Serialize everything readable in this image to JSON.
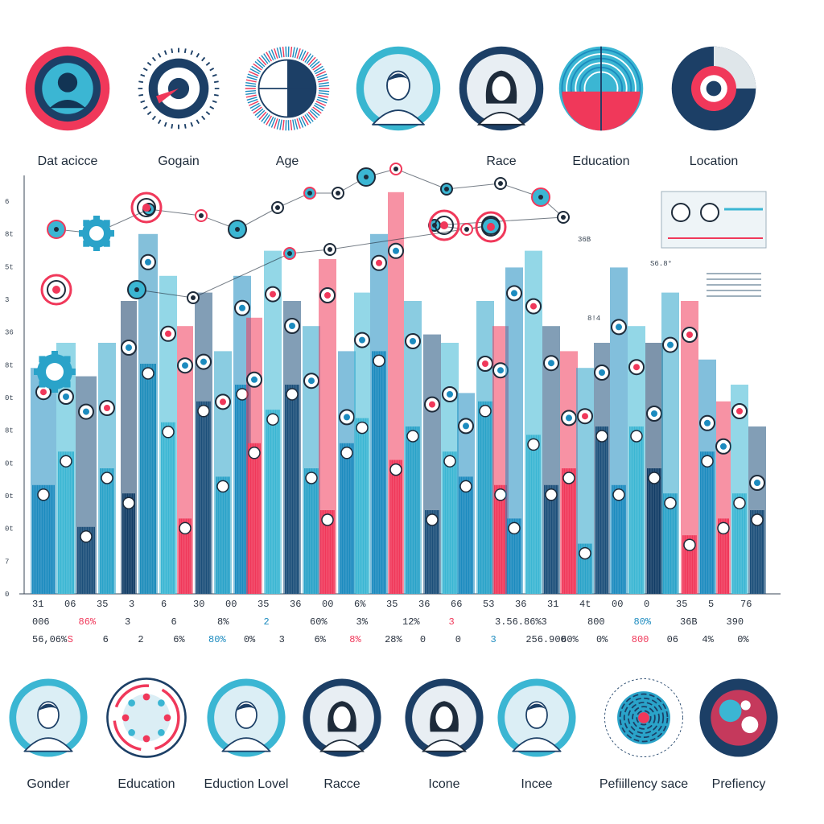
{
  "top_badges": [
    {
      "label": "Dat acicce",
      "icon": "person-icon",
      "accent": "#f0385a"
    },
    {
      "label": "Gogain",
      "icon": "target-icon",
      "accent": "#f0385a"
    },
    {
      "label": "Age",
      "icon": "radial-pie-icon",
      "accent": "#1c8bbf"
    },
    {
      "label": "",
      "icon": "man-portrait-icon",
      "accent": "#38b6d0"
    },
    {
      "label": "Race",
      "icon": "woman-portrait-icon",
      "accent": "#1c3f66"
    },
    {
      "label": "Education",
      "icon": "striped-ring-icon",
      "accent": "#f0385a"
    },
    {
      "label": "Location",
      "icon": "concentric-ring-icon",
      "accent": "#f0385a"
    }
  ],
  "bottom_badges": [
    {
      "label": "Gonder",
      "icon": "man-portrait-icon"
    },
    {
      "label": "Education",
      "icon": "network-ring-icon"
    },
    {
      "label": "Eduction Lovel",
      "icon": "man-portrait-icon"
    },
    {
      "label": "Racce",
      "icon": "woman-portrait-icon"
    },
    {
      "label": "Icone",
      "icon": "woman-portrait-icon"
    },
    {
      "label": "Incee",
      "icon": "man-portrait-icon"
    },
    {
      "label": "Pefiillency sace",
      "icon": "maze-globe-icon"
    },
    {
      "label": "Prefiency",
      "icon": "nodes-globe-icon"
    }
  ],
  "chart_data": {
    "type": "bar",
    "y_ticks": [
      "6",
      "8t",
      "5t",
      "3",
      "36",
      "8t",
      "0t",
      "8t",
      "0t",
      "0t",
      "0t",
      "7",
      "0"
    ],
    "top_right_labels": [
      "S6.8°",
      "36B",
      "8!4"
    ],
    "bars": [
      {
        "x": 38,
        "w": 32,
        "back": 0.54,
        "front": 0.26,
        "color": "#1c8bbf"
      },
      {
        "x": 70,
        "w": 24,
        "back": 0.6,
        "front": 0.34,
        "color": "#3bb6d3"
      },
      {
        "x": 94,
        "w": 26,
        "back": 0.52,
        "front": 0.16,
        "color": "#1c4f7a"
      },
      {
        "x": 122,
        "w": 22,
        "back": 0.6,
        "front": 0.3,
        "color": "#2aa3c9"
      },
      {
        "x": 150,
        "w": 20,
        "back": 0.7,
        "front": 0.24,
        "color": "#123d66"
      },
      {
        "x": 172,
        "w": 24,
        "back": 0.86,
        "front": 0.55,
        "color": "#1f8dbb"
      },
      {
        "x": 198,
        "w": 22,
        "back": 0.76,
        "front": 0.41,
        "color": "#3bb6d3"
      },
      {
        "x": 220,
        "w": 20,
        "back": 0.64,
        "front": 0.18,
        "color": "#f0385a"
      },
      {
        "x": 242,
        "w": 22,
        "back": 0.72,
        "front": 0.46,
        "color": "#1c4f7a"
      },
      {
        "x": 266,
        "w": 22,
        "back": 0.58,
        "front": 0.28,
        "color": "#2aa3c9"
      },
      {
        "x": 290,
        "w": 22,
        "back": 0.76,
        "front": 0.5,
        "color": "#1c8bbf"
      },
      {
        "x": 306,
        "w": 20,
        "back": 0.66,
        "front": 0.36,
        "color": "#f0385a"
      },
      {
        "x": 328,
        "w": 22,
        "back": 0.82,
        "front": 0.44,
        "color": "#3bb6d3"
      },
      {
        "x": 352,
        "w": 22,
        "back": 0.7,
        "front": 0.5,
        "color": "#1c4f7a"
      },
      {
        "x": 376,
        "w": 22,
        "back": 0.64,
        "front": 0.3,
        "color": "#2aa3c9"
      },
      {
        "x": 396,
        "w": 22,
        "back": 0.8,
        "front": 0.2,
        "color": "#f0385a"
      },
      {
        "x": 420,
        "w": 22,
        "back": 0.58,
        "front": 0.36,
        "color": "#1c8bbf"
      },
      {
        "x": 440,
        "w": 20,
        "back": 0.72,
        "front": 0.42,
        "color": "#3bb6d3"
      },
      {
        "x": 460,
        "w": 22,
        "back": 0.86,
        "front": 0.58,
        "color": "#1c8bbf"
      },
      {
        "x": 482,
        "w": 20,
        "back": 0.96,
        "front": 0.32,
        "color": "#f0385a"
      },
      {
        "x": 502,
        "w": 22,
        "back": 0.7,
        "front": 0.4,
        "color": "#2aa3c9"
      },
      {
        "x": 526,
        "w": 22,
        "back": 0.62,
        "front": 0.2,
        "color": "#1c4f7a"
      },
      {
        "x": 548,
        "w": 22,
        "back": 0.6,
        "front": 0.34,
        "color": "#3bb6d3"
      },
      {
        "x": 568,
        "w": 22,
        "back": 0.48,
        "front": 0.28,
        "color": "#1c8bbf"
      },
      {
        "x": 592,
        "w": 22,
        "back": 0.7,
        "front": 0.46,
        "color": "#2aa3c9"
      },
      {
        "x": 612,
        "w": 20,
        "back": 0.64,
        "front": 0.26,
        "color": "#f0385a"
      },
      {
        "x": 628,
        "w": 22,
        "back": 0.78,
        "front": 0.18,
        "color": "#1c8bbf"
      },
      {
        "x": 652,
        "w": 22,
        "back": 0.82,
        "front": 0.38,
        "color": "#3bb6d3"
      },
      {
        "x": 674,
        "w": 22,
        "back": 0.64,
        "front": 0.26,
        "color": "#1c4f7a"
      },
      {
        "x": 696,
        "w": 22,
        "back": 0.58,
        "front": 0.3,
        "color": "#f0385a"
      },
      {
        "x": 716,
        "w": 22,
        "back": 0.54,
        "front": 0.12,
        "color": "#2aa3c9"
      },
      {
        "x": 738,
        "w": 20,
        "back": 0.6,
        "front": 0.4,
        "color": "#1c4f7a"
      },
      {
        "x": 758,
        "w": 22,
        "back": 0.78,
        "front": 0.26,
        "color": "#1c8bbf"
      },
      {
        "x": 780,
        "w": 22,
        "back": 0.64,
        "front": 0.4,
        "color": "#3bb6d3"
      },
      {
        "x": 802,
        "w": 22,
        "back": 0.6,
        "front": 0.3,
        "color": "#123d66"
      },
      {
        "x": 822,
        "w": 22,
        "back": 0.72,
        "front": 0.24,
        "color": "#2aa3c9"
      },
      {
        "x": 846,
        "w": 22,
        "back": 0.7,
        "front": 0.14,
        "color": "#f0385a"
      },
      {
        "x": 868,
        "w": 22,
        "back": 0.56,
        "front": 0.34,
        "color": "#1c8bbf"
      },
      {
        "x": 890,
        "w": 18,
        "back": 0.46,
        "front": 0.18,
        "color": "#f0385a"
      },
      {
        "x": 908,
        "w": 22,
        "back": 0.5,
        "front": 0.24,
        "color": "#3bb6d3"
      },
      {
        "x": 930,
        "w": 22,
        "back": 0.4,
        "front": 0.2,
        "color": "#1c4f7a"
      }
    ]
  },
  "table_rows": [
    [
      "31",
      "06",
      "35",
      "3",
      "6",
      "30",
      "00",
      "35",
      "36",
      "00",
      "6%",
      "35",
      "36",
      "66",
      "53",
      "36",
      "31",
      "4t",
      "00",
      "0",
      "35",
      "5",
      "76"
    ],
    [
      "006",
      "86%",
      "3",
      "6",
      "8%",
      "2",
      "60%",
      "3%",
      "12%",
      "3",
      "3.56.86%",
      "3",
      "800",
      "80%",
      "36B",
      "390"
    ],
    [
      "56,06%",
      "S",
      "6",
      "2",
      "6%",
      "80%",
      "0%",
      "3",
      "6%",
      "8%",
      "28%",
      "0",
      "0",
      "3",
      "256.900",
      "60%",
      "0%",
      "800",
      "06",
      "4%",
      "0%"
    ]
  ],
  "colors": {
    "teal": "#3bb6d3",
    "navy": "#1c4f7a",
    "blue": "#1c8bbf",
    "pink": "#f0385a"
  }
}
